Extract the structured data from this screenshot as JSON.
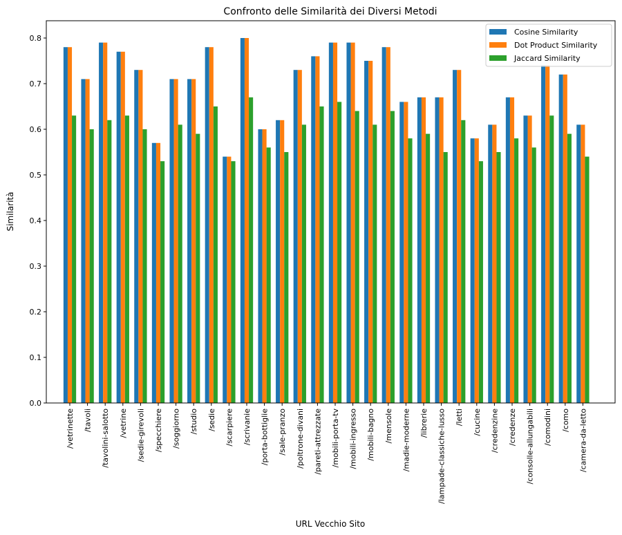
{
  "chart_data": {
    "type": "bar",
    "title": "Confronto delle Similarità dei Diversi Metodi",
    "xlabel": "URL Vecchio Sito",
    "ylabel": "Similarità",
    "ylim": [
      0,
      0.84
    ],
    "yticks": [
      "0.0",
      "0.1",
      "0.2",
      "0.3",
      "0.4",
      "0.5",
      "0.6",
      "0.7",
      "0.8"
    ],
    "grid": false,
    "legend_position": "top-right",
    "categories": [
      "/vetrinette",
      "/tavoli",
      "/tavolini-salotto",
      "/vetrine",
      "/sedie-girevoli",
      "/specchiere",
      "/soggiorno",
      "/studio",
      "/sedie",
      "/scarpiere",
      "/scrivanie",
      "/porta-bottiglie",
      "/sale-pranzo",
      "/poltrone-divani",
      "/pareti-attrezzate",
      "/mobili-porta-tv",
      "/mobili-ingresso",
      "/mobili-bagno",
      "/mensole",
      "/madie-moderne",
      "/librerie",
      "/lampade-classiche-lusso",
      "/letti",
      "/cucine",
      "/credenzine",
      "/credenze",
      "/consolle-allungabili",
      "/comodini",
      "/como",
      "/camera-da-letto"
    ],
    "series": [
      {
        "name": "Cosine Similarity",
        "color": "#1f77b4",
        "values": [
          0.78,
          0.71,
          0.79,
          0.77,
          0.73,
          0.57,
          0.71,
          0.71,
          0.78,
          0.54,
          0.8,
          0.6,
          0.62,
          0.73,
          0.76,
          0.79,
          0.79,
          0.75,
          0.78,
          0.66,
          0.67,
          0.67,
          0.73,
          0.58,
          0.61,
          0.67,
          0.63,
          0.74,
          0.72,
          0.61
        ]
      },
      {
        "name": "Dot Product Similarity",
        "color": "#ff7f0e",
        "values": [
          0.78,
          0.71,
          0.79,
          0.77,
          0.73,
          0.57,
          0.71,
          0.71,
          0.78,
          0.54,
          0.8,
          0.6,
          0.62,
          0.73,
          0.76,
          0.79,
          0.79,
          0.75,
          0.78,
          0.66,
          0.67,
          0.67,
          0.73,
          0.58,
          0.61,
          0.67,
          0.63,
          0.74,
          0.72,
          0.61
        ]
      },
      {
        "name": "Jaccard Similarity",
        "color": "#2ca02c",
        "values": [
          0.63,
          0.6,
          0.62,
          0.63,
          0.6,
          0.53,
          0.61,
          0.59,
          0.65,
          0.53,
          0.67,
          0.56,
          0.55,
          0.61,
          0.65,
          0.66,
          0.64,
          0.61,
          0.64,
          0.58,
          0.59,
          0.55,
          0.62,
          0.53,
          0.55,
          0.58,
          0.56,
          0.63,
          0.59,
          0.54
        ]
      }
    ]
  }
}
